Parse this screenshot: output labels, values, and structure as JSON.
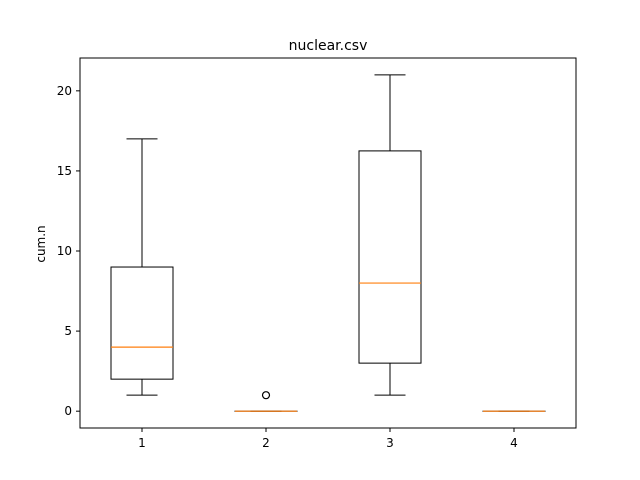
{
  "chart_data": {
    "type": "box",
    "title": "nuclear.csv",
    "xlabel": "",
    "ylabel": "cum.n",
    "categories": [
      "1",
      "2",
      "3",
      "4"
    ],
    "y_ticks": [
      0,
      5,
      10,
      15,
      20
    ],
    "ylim": [
      -1.05,
      22.05
    ],
    "xlim": [
      0.5,
      4.5
    ],
    "grid": false,
    "boxes": [
      {
        "whisker_low": 1,
        "q1": 2,
        "median": 4,
        "q3": 9,
        "whisker_high": 17,
        "outliers": []
      },
      {
        "whisker_low": 0,
        "q1": 0,
        "median": 0,
        "q3": 0,
        "whisker_high": 0,
        "outliers": [
          1
        ]
      },
      {
        "whisker_low": 1,
        "q1": 3,
        "median": 8,
        "q3": 16.25,
        "whisker_high": 21,
        "outliers": []
      },
      {
        "whisker_low": 0,
        "q1": 0,
        "median": 0,
        "q3": 0,
        "whisker_high": 0,
        "outliers": []
      }
    ],
    "colors": {
      "box": "#000000",
      "median": "#ff7f0e",
      "flier": "#000000",
      "background": "#ffffff"
    }
  }
}
